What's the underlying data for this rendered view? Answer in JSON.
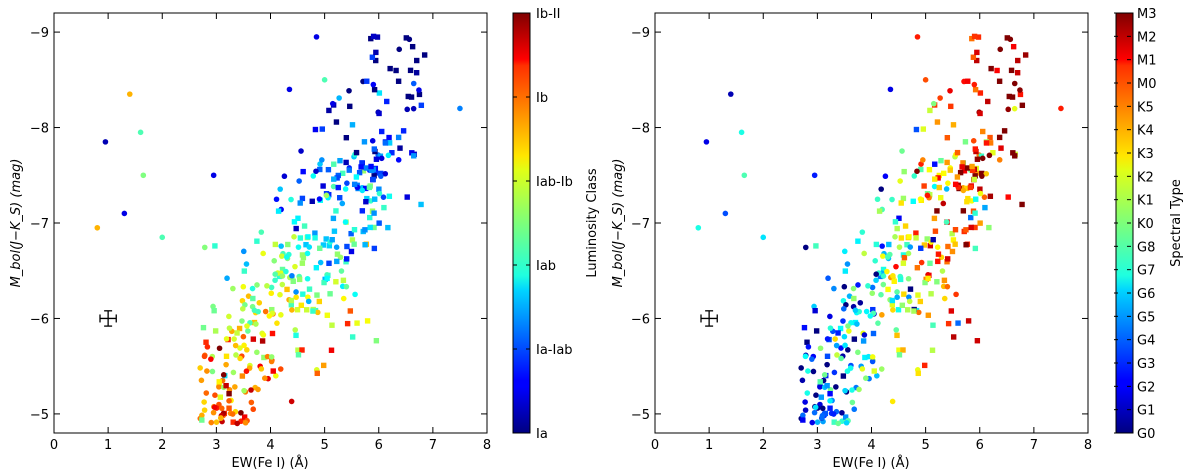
{
  "chart_data": [
    {
      "type": "scatter",
      "xlabel": "EW(Fe I) (Å)",
      "ylabel": "M_bol(J−K_S) (mag)",
      "xlim": [
        0,
        8
      ],
      "ylim": [
        -4.8,
        -9.2
      ],
      "xticks": [
        "0",
        "1",
        "2",
        "3",
        "4",
        "5",
        "6",
        "7",
        "8"
      ],
      "yticks": [
        "−9",
        "−8",
        "−7",
        "−6",
        "−5"
      ],
      "colorbar": {
        "label": "Luminosity Class",
        "ticks": [
          "Ia",
          "Ia-Iab",
          "Iab",
          "Iab-Ib",
          "Ib",
          "Ib-II"
        ]
      },
      "errorbar": {
        "x": 1.0,
        "y": -6.0,
        "xerr": 0.15,
        "yerr": 0.08
      },
      "points_summary": {
        "count_approx": 450,
        "x_range": [
          0.8,
          7.5
        ],
        "y_range": [
          -4.9,
          -9.0
        ],
        "color_param": "luminosity class (0 = Ia … 1 = Ib-II)"
      }
    },
    {
      "type": "scatter",
      "xlabel": "EW(Fe I) (Å)",
      "ylabel": "M_bol(J−K_S) (mag)",
      "xlim": [
        0,
        8
      ],
      "ylim": [
        -4.8,
        -9.2
      ],
      "xticks": [
        "0",
        "1",
        "2",
        "3",
        "4",
        "5",
        "6",
        "7",
        "8"
      ],
      "yticks": [
        "−9",
        "−8",
        "−7",
        "−6",
        "−5"
      ],
      "colorbar": {
        "label": "Spectral Type",
        "ticks": [
          "G0",
          "G1",
          "G2",
          "G3",
          "G4",
          "G5",
          "G6",
          "G7",
          "G8",
          "K0",
          "K1",
          "K2",
          "K3",
          "K4",
          "K5",
          "M0",
          "M1",
          "M2",
          "M3"
        ]
      },
      "errorbar": {
        "x": 1.0,
        "y": -6.0,
        "xerr": 0.15,
        "yerr": 0.08
      },
      "points_summary": {
        "count_approx": 450,
        "x_range": [
          0.8,
          7.5
        ],
        "y_range": [
          -4.9,
          -9.0
        ],
        "color_param": "spectral type (0 = G0 … 1 = M3)"
      }
    }
  ]
}
